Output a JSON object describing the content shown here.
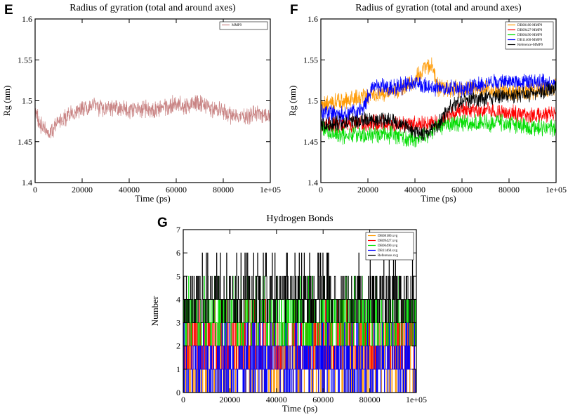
{
  "panels": {
    "E": {
      "letter": "E"
    },
    "F": {
      "letter": "F"
    },
    "G": {
      "letter": "G"
    }
  },
  "chart_data": [
    {
      "id": "E",
      "type": "line",
      "title": "Radius of gyration (total and around axes)",
      "xlabel": "Time (ps)",
      "ylabel": "Rg (nm)",
      "xlim": [
        0,
        100000
      ],
      "ylim": [
        1.4,
        1.6
      ],
      "xticks": [
        0,
        20000,
        40000,
        60000,
        80000,
        100000
      ],
      "xtick_labels": [
        "0",
        "20000",
        "40000",
        "60000",
        "80000",
        "1e+05"
      ],
      "yticks": [
        1.4,
        1.45,
        1.5,
        1.55,
        1.6
      ],
      "ytick_labels": [
        "1.4",
        "1.45",
        "1.5",
        "1.55",
        "1.6"
      ],
      "legend_position": "top-right",
      "series": [
        {
          "name": "MMP9",
          "color": "#c98484",
          "noise": 0.009,
          "x": [
            0,
            3000,
            6000,
            10000,
            15000,
            20000,
            25000,
            30000,
            35000,
            40000,
            45000,
            50000,
            55000,
            60000,
            65000,
            70000,
            75000,
            80000,
            85000,
            90000,
            95000,
            100000
          ],
          "y": [
            1.485,
            1.468,
            1.458,
            1.475,
            1.482,
            1.49,
            1.493,
            1.491,
            1.492,
            1.489,
            1.491,
            1.488,
            1.492,
            1.497,
            1.494,
            1.498,
            1.49,
            1.487,
            1.48,
            1.482,
            1.484,
            1.482
          ]
        }
      ]
    },
    {
      "id": "F",
      "type": "line",
      "title": "Radius of gyration (total and around axes)",
      "xlabel": "Time (ps)",
      "ylabel": "Rg (nm)",
      "xlim": [
        0,
        100000
      ],
      "ylim": [
        1.4,
        1.6
      ],
      "xticks": [
        0,
        20000,
        40000,
        60000,
        80000,
        100000
      ],
      "xtick_labels": [
        "0",
        "20000",
        "40000",
        "60000",
        "80000",
        "1e+05"
      ],
      "yticks": [
        1.4,
        1.45,
        1.5,
        1.55,
        1.6
      ],
      "ytick_labels": [
        "1.4",
        "1.45",
        "1.5",
        "1.55",
        "1.6"
      ],
      "legend_position": "top-right",
      "series": [
        {
          "name": "DB08180-MMP9",
          "color": "#ff9900",
          "noise": 0.009,
          "x": [
            0,
            10000,
            20000,
            30000,
            35000,
            40000,
            44000,
            47000,
            50000,
            55000,
            60000,
            70000,
            80000,
            90000,
            100000
          ],
          "y": [
            1.495,
            1.5,
            1.505,
            1.512,
            1.515,
            1.525,
            1.54,
            1.545,
            1.515,
            1.515,
            1.513,
            1.515,
            1.51,
            1.512,
            1.518
          ]
        },
        {
          "name": "DB09427-MMP9",
          "color": "#ff0000",
          "noise": 0.009,
          "x": [
            0,
            10000,
            20000,
            30000,
            40000,
            50000,
            55000,
            60000,
            70000,
            80000,
            90000,
            100000
          ],
          "y": [
            1.47,
            1.472,
            1.473,
            1.472,
            1.47,
            1.474,
            1.482,
            1.487,
            1.488,
            1.485,
            1.482,
            1.483
          ]
        },
        {
          "name": "DB06490-MMP9",
          "color": "#00dd00",
          "noise": 0.009,
          "x": [
            0,
            10000,
            20000,
            30000,
            40000,
            45000,
            50000,
            60000,
            70000,
            80000,
            90000,
            100000
          ],
          "y": [
            1.465,
            1.458,
            1.458,
            1.458,
            1.452,
            1.458,
            1.468,
            1.472,
            1.474,
            1.472,
            1.468,
            1.466
          ]
        },
        {
          "name": "DB11460-MMP9",
          "color": "#0000ff",
          "noise": 0.009,
          "x": [
            0,
            10000,
            18000,
            22000,
            30000,
            40000,
            50000,
            60000,
            70000,
            80000,
            90000,
            100000
          ],
          "y": [
            1.485,
            1.482,
            1.49,
            1.518,
            1.516,
            1.52,
            1.514,
            1.515,
            1.522,
            1.525,
            1.522,
            1.52
          ]
        },
        {
          "name": "Reference-MMP9",
          "color": "#000000",
          "noise": 0.008,
          "x": [
            0,
            10000,
            20000,
            30000,
            35000,
            40000,
            45000,
            50000,
            55000,
            60000,
            70000,
            80000,
            90000,
            100000
          ],
          "y": [
            1.47,
            1.474,
            1.478,
            1.475,
            1.47,
            1.462,
            1.46,
            1.472,
            1.492,
            1.5,
            1.503,
            1.505,
            1.508,
            1.515
          ]
        }
      ]
    },
    {
      "id": "G",
      "type": "line",
      "title": "Hydrogen Bonds",
      "xlabel": "Time (ps)",
      "ylabel": "Number",
      "xlim": [
        0,
        100000
      ],
      "ylim": [
        0,
        7
      ],
      "xticks": [
        0,
        20000,
        40000,
        60000,
        80000,
        100000
      ],
      "xtick_labels": [
        "0",
        "20000",
        "40000",
        "60000",
        "80000",
        "1e+05"
      ],
      "yticks": [
        0,
        1,
        2,
        3,
        4,
        5,
        6,
        7
      ],
      "ytick_labels": [
        "0",
        "1",
        "2",
        "3",
        "4",
        "5",
        "6",
        "7"
      ],
      "legend_position": "top-right",
      "series": [
        {
          "name": "DB08180.xvg",
          "color": "#ff9900",
          "base": 1,
          "range": [
            0,
            3
          ]
        },
        {
          "name": "DB09427.xvg",
          "color": "#ff0000",
          "base": 2,
          "range": [
            1,
            4
          ]
        },
        {
          "name": "DB06490.xvg",
          "color": "#00dd00",
          "base": 3,
          "range": [
            0,
            6
          ]
        },
        {
          "name": "DB11460.xvg",
          "color": "#0000ff",
          "base": 1,
          "range": [
            0,
            3
          ]
        },
        {
          "name": "Reference.xvg",
          "color": "#000000",
          "base": 4,
          "range": [
            2,
            7
          ]
        }
      ]
    }
  ]
}
